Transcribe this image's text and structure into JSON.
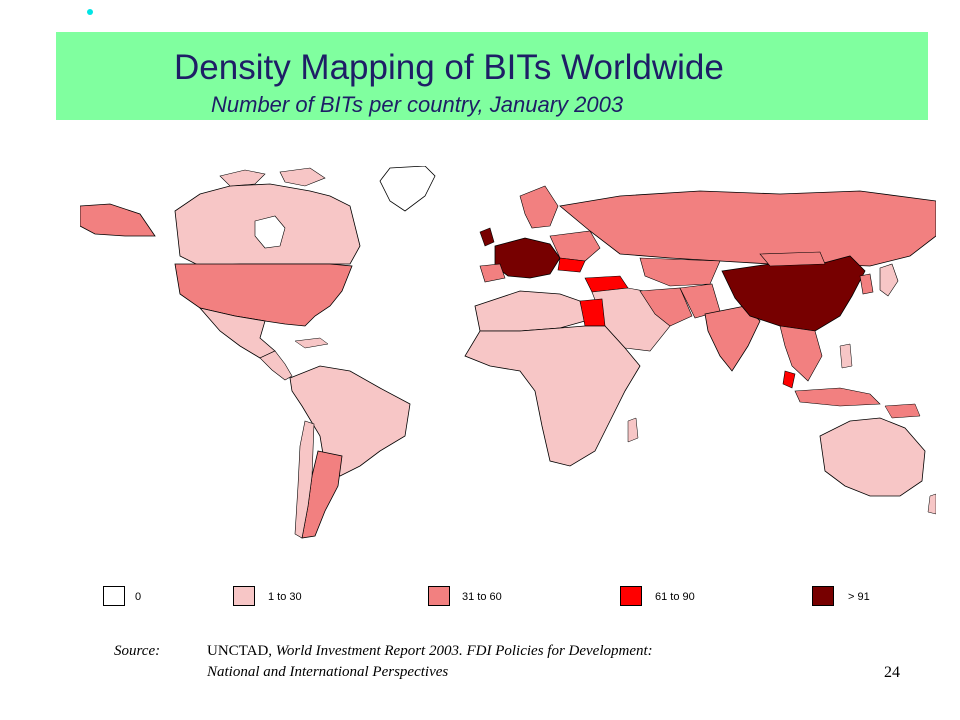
{
  "header": {
    "title": "Density Mapping of BITs Worldwide",
    "subtitle": "Number of BITs per country, January 2003"
  },
  "colors": {
    "banner": "#80ff9f",
    "ocean": "#ffffff",
    "bin_0": "#ffffff",
    "bin_1_30": "#f7c6c6",
    "bin_31_60": "#f28080",
    "bin_61_90": "#ff0000",
    "bin_91_plus": "#770000"
  },
  "legend": [
    {
      "label": "0",
      "color": "#ffffff"
    },
    {
      "label": "1 to 30",
      "color": "#f7c6c6"
    },
    {
      "label": "31 to 60",
      "color": "#f28080"
    },
    {
      "label": "61 to 90",
      "color": "#ff0000"
    },
    {
      "label": "> 91",
      "color": "#770000"
    }
  ],
  "source": {
    "label": "Source:",
    "org": "UNCTAD, ",
    "line1_rest": "World Investment Report 2003.  FDI Policies for Development:",
    "line2": "National and International Perspectives"
  },
  "page_number": "24"
}
